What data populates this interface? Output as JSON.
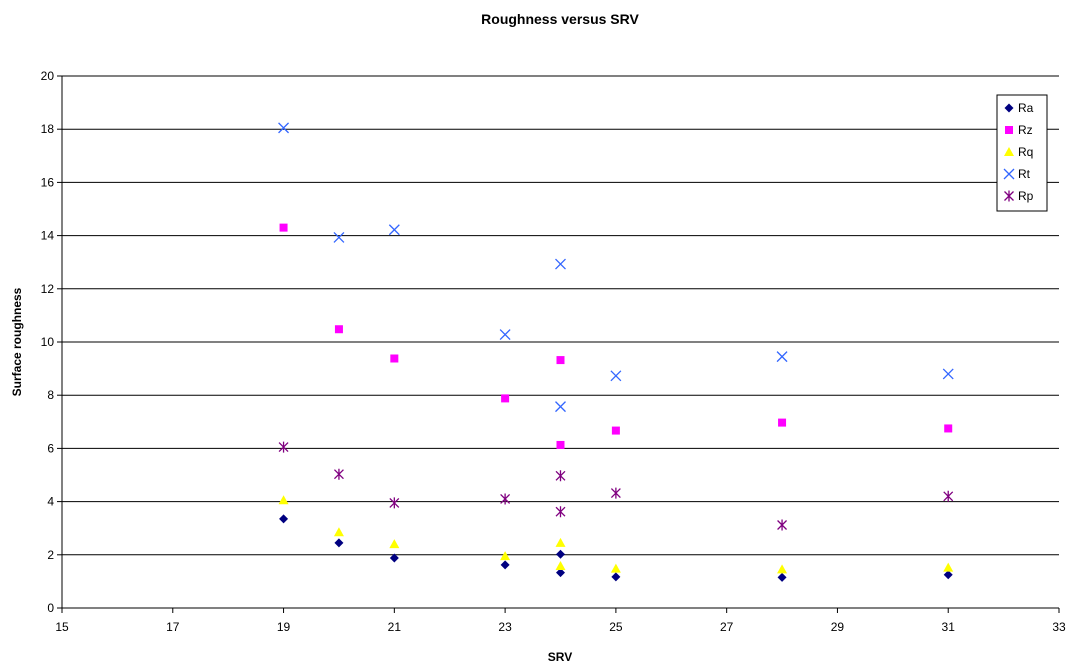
{
  "chart_data": {
    "type": "scatter",
    "title": "Roughness versus SRV",
    "xlabel": "SRV",
    "ylabel": "Surface roughness",
    "xlim": [
      15,
      33
    ],
    "ylim": [
      0,
      20
    ],
    "x_ticks": [
      15,
      17,
      19,
      21,
      23,
      25,
      27,
      29,
      31,
      33
    ],
    "y_ticks": [
      0,
      2,
      4,
      6,
      8,
      10,
      12,
      14,
      16,
      18,
      20
    ],
    "grid": "horizontal",
    "legend_position": "top-right",
    "series": [
      {
        "name": "Ra",
        "marker": "diamond",
        "color": "#000080",
        "points": [
          [
            19,
            3.35
          ],
          [
            20,
            2.45
          ],
          [
            21,
            1.88
          ],
          [
            23,
            1.62
          ],
          [
            24,
            2.02
          ],
          [
            24,
            1.33
          ],
          [
            25,
            1.17
          ],
          [
            28,
            1.15
          ],
          [
            31,
            1.25
          ]
        ]
      },
      {
        "name": "Rz",
        "marker": "square",
        "color": "#ff00ff",
        "points": [
          [
            19,
            14.3
          ],
          [
            20,
            10.48
          ],
          [
            21,
            9.38
          ],
          [
            23,
            7.88
          ],
          [
            24,
            9.32
          ],
          [
            24,
            6.13
          ],
          [
            25,
            6.67
          ],
          [
            28,
            6.97
          ],
          [
            31,
            6.75
          ]
        ]
      },
      {
        "name": "Rq",
        "marker": "triangle",
        "color": "#ffff00",
        "points": [
          [
            19,
            4.05
          ],
          [
            20,
            2.85
          ],
          [
            21,
            2.4
          ],
          [
            23,
            1.95
          ],
          [
            24,
            2.45
          ],
          [
            24,
            1.58
          ],
          [
            25,
            1.48
          ],
          [
            28,
            1.45
          ],
          [
            31,
            1.52
          ]
        ]
      },
      {
        "name": "Rt",
        "marker": "x",
        "color": "#3366ff",
        "points": [
          [
            19,
            18.05
          ],
          [
            20,
            13.93
          ],
          [
            21,
            14.22
          ],
          [
            23,
            10.28
          ],
          [
            24,
            12.93
          ],
          [
            24,
            7.57
          ],
          [
            25,
            8.73
          ],
          [
            28,
            9.45
          ],
          [
            31,
            8.8
          ]
        ]
      },
      {
        "name": "Rp",
        "marker": "star",
        "color": "#800080",
        "points": [
          [
            19,
            6.05
          ],
          [
            20,
            5.03
          ],
          [
            21,
            3.95
          ],
          [
            23,
            4.1
          ],
          [
            24,
            4.97
          ],
          [
            24,
            3.62
          ],
          [
            25,
            4.32
          ],
          [
            28,
            3.12
          ],
          [
            31,
            4.2
          ]
        ]
      }
    ]
  }
}
